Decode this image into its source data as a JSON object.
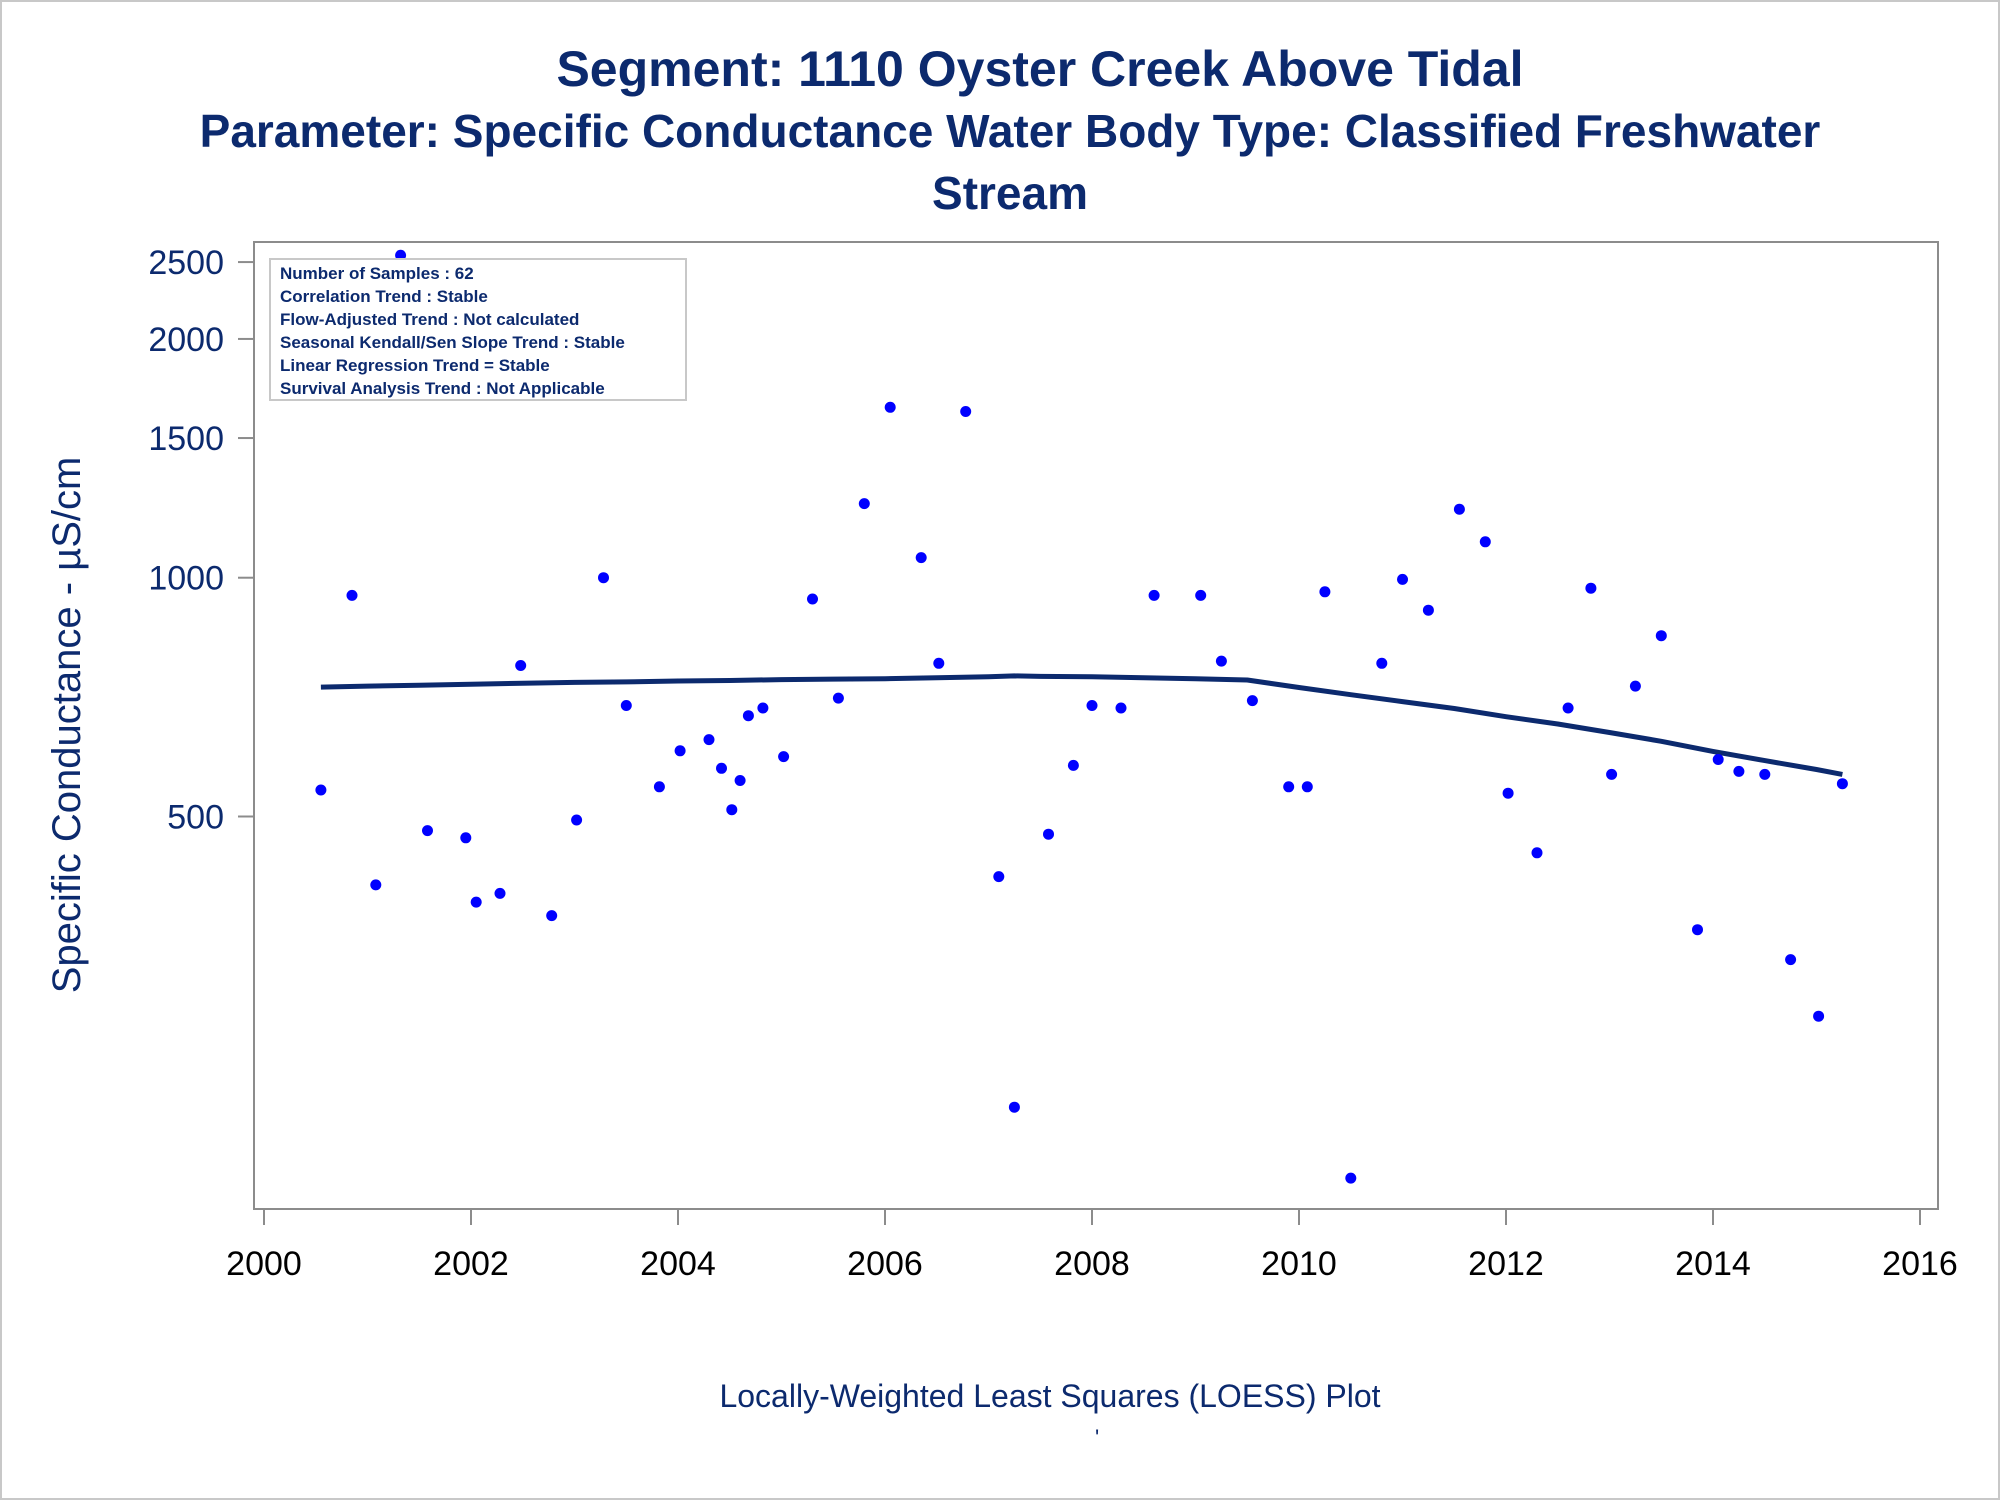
{
  "header": {
    "title": "Segment: 1110  Oyster Creek Above Tidal",
    "subtitle_line1": "Parameter: Specific Conductance   Water Body Type: Classified Freshwater",
    "subtitle_line2": "Stream"
  },
  "footer": {
    "note": "Locally-Weighted Least Squares (LOESS) Plot",
    "mark": "'"
  },
  "info_box": [
    "Number of Samples : 62",
    "Correlation Trend : Stable",
    "Flow-Adjusted Trend : Not calculated",
    "Seasonal Kendall/Sen Slope Trend : Stable",
    "Linear Regression Trend = Stable",
    "Survival Analysis Trend : Not Applicable"
  ],
  "colors": {
    "title": "#0c2a6e",
    "points": "#0000ff",
    "loess": "#0c2a6e",
    "axis": "#8c8c8c"
  },
  "chart_data": {
    "type": "scatter",
    "ylabel": "Specific Conductance -  µS/cm",
    "xlabel": "",
    "y_scale": "log",
    "xlim": [
      2000,
      2016
    ],
    "ylim": [
      160,
      2650
    ],
    "x_ticks": [
      2000,
      2002,
      2004,
      2006,
      2008,
      2010,
      2012,
      2014,
      2016
    ],
    "y_ticks": [
      500,
      1000,
      1500,
      2000,
      2500
    ],
    "grid": false,
    "series": [
      {
        "type": "scatter",
        "x": [
          2000.55,
          2000.85,
          2001.08,
          2001.32,
          2001.58,
          2001.95,
          2002.05,
          2002.28,
          2002.48,
          2002.78,
          2003.02,
          2003.28,
          2003.5,
          2003.82,
          2004.02,
          2004.3,
          2004.42,
          2004.52,
          2004.6,
          2004.68,
          2004.82,
          2005.02,
          2005.3,
          2005.55,
          2005.8,
          2006.05,
          2006.35,
          2006.52,
          2006.78,
          2007.1,
          2007.25,
          2007.58,
          2007.82,
          2008.0,
          2008.28,
          2008.6,
          2009.05,
          2009.25,
          2009.55,
          2009.9,
          2010.08,
          2010.25,
          2010.5,
          2010.8,
          2011.0,
          2011.25,
          2011.55,
          2011.8,
          2012.02,
          2012.3,
          2012.6,
          2012.82,
          2013.02,
          2013.25,
          2013.5,
          2013.85,
          2014.05,
          2014.25,
          2014.5,
          2014.75,
          2015.02,
          2015.25
        ],
        "y": [
          540,
          950,
          410,
          2550,
          480,
          470,
          390,
          400,
          775,
          375,
          495,
          1000,
          690,
          545,
          605,
          625,
          575,
          510,
          555,
          670,
          685,
          595,
          940,
          705,
          1240,
          1640,
          1060,
          780,
          1620,
          420,
          215,
          475,
          580,
          690,
          685,
          950,
          950,
          785,
          700,
          545,
          545,
          960,
          175,
          780,
          995,
          910,
          1220,
          1110,
          535,
          450,
          685,
          970,
          565,
          730,
          845,
          360,
          590,
          570,
          565,
          330,
          280,
          550
        ]
      },
      {
        "type": "line",
        "name": "",
        "x": [
          2000.55,
          2001.0,
          2001.5,
          2002.0,
          2002.5,
          2003.0,
          2003.5,
          2004.0,
          2004.5,
          2005.0,
          2005.5,
          2006.0,
          2006.5,
          2007.0,
          2007.25,
          2007.5,
          2008.0,
          2008.5,
          2009.0,
          2009.5,
          2010.0,
          2010.5,
          2011.0,
          2011.5,
          2012.0,
          2012.5,
          2013.0,
          2013.5,
          2014.0,
          2014.5,
          2015.0,
          2015.25
        ],
        "y": [
          728,
          730,
          732,
          734,
          736,
          738,
          739,
          741,
          742,
          744,
          745,
          746,
          748,
          750,
          752,
          751,
          750,
          748,
          746,
          743,
          727,
          712,
          698,
          684,
          668,
          654,
          638,
          622,
          604,
          588,
          573,
          565
        ]
      }
    ]
  }
}
